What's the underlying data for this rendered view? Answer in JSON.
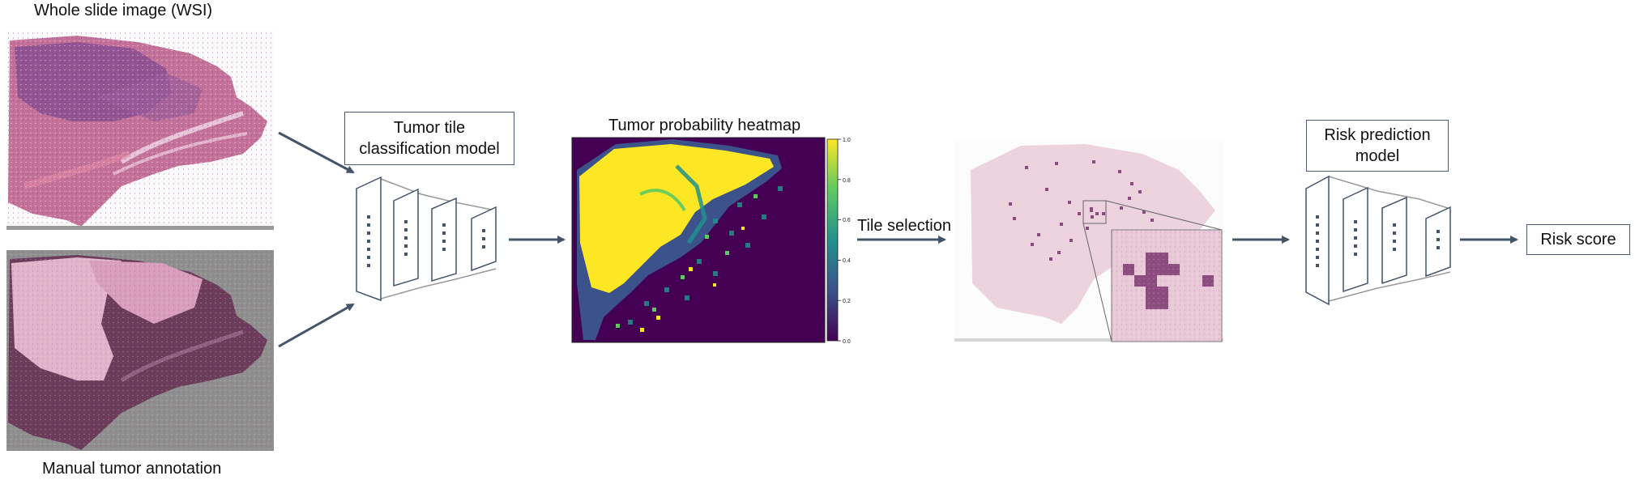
{
  "labels": {
    "wsi": "Whole slide image (WSI)",
    "manual": "Manual tumor annotation",
    "classifier_line1": "Tumor tile",
    "classifier_line2": "classification model",
    "heatmap_title": "Tumor probability heatmap",
    "tile_selection": "Tile selection",
    "risk_model_line1": "Risk prediction",
    "risk_model_line2": "model",
    "risk_score": "Risk score"
  },
  "colorbar_ticks": [
    "1.0",
    "0.8",
    "0.6",
    "0.4",
    "0.2",
    "0.0"
  ],
  "colors": {
    "arrow": "#44546a",
    "tissue_pink": "#c87aa0",
    "tissue_purple": "#8a4c8e",
    "viridis_low": "#440154",
    "viridis_mid": "#21918c",
    "viridis_high": "#fde725"
  }
}
